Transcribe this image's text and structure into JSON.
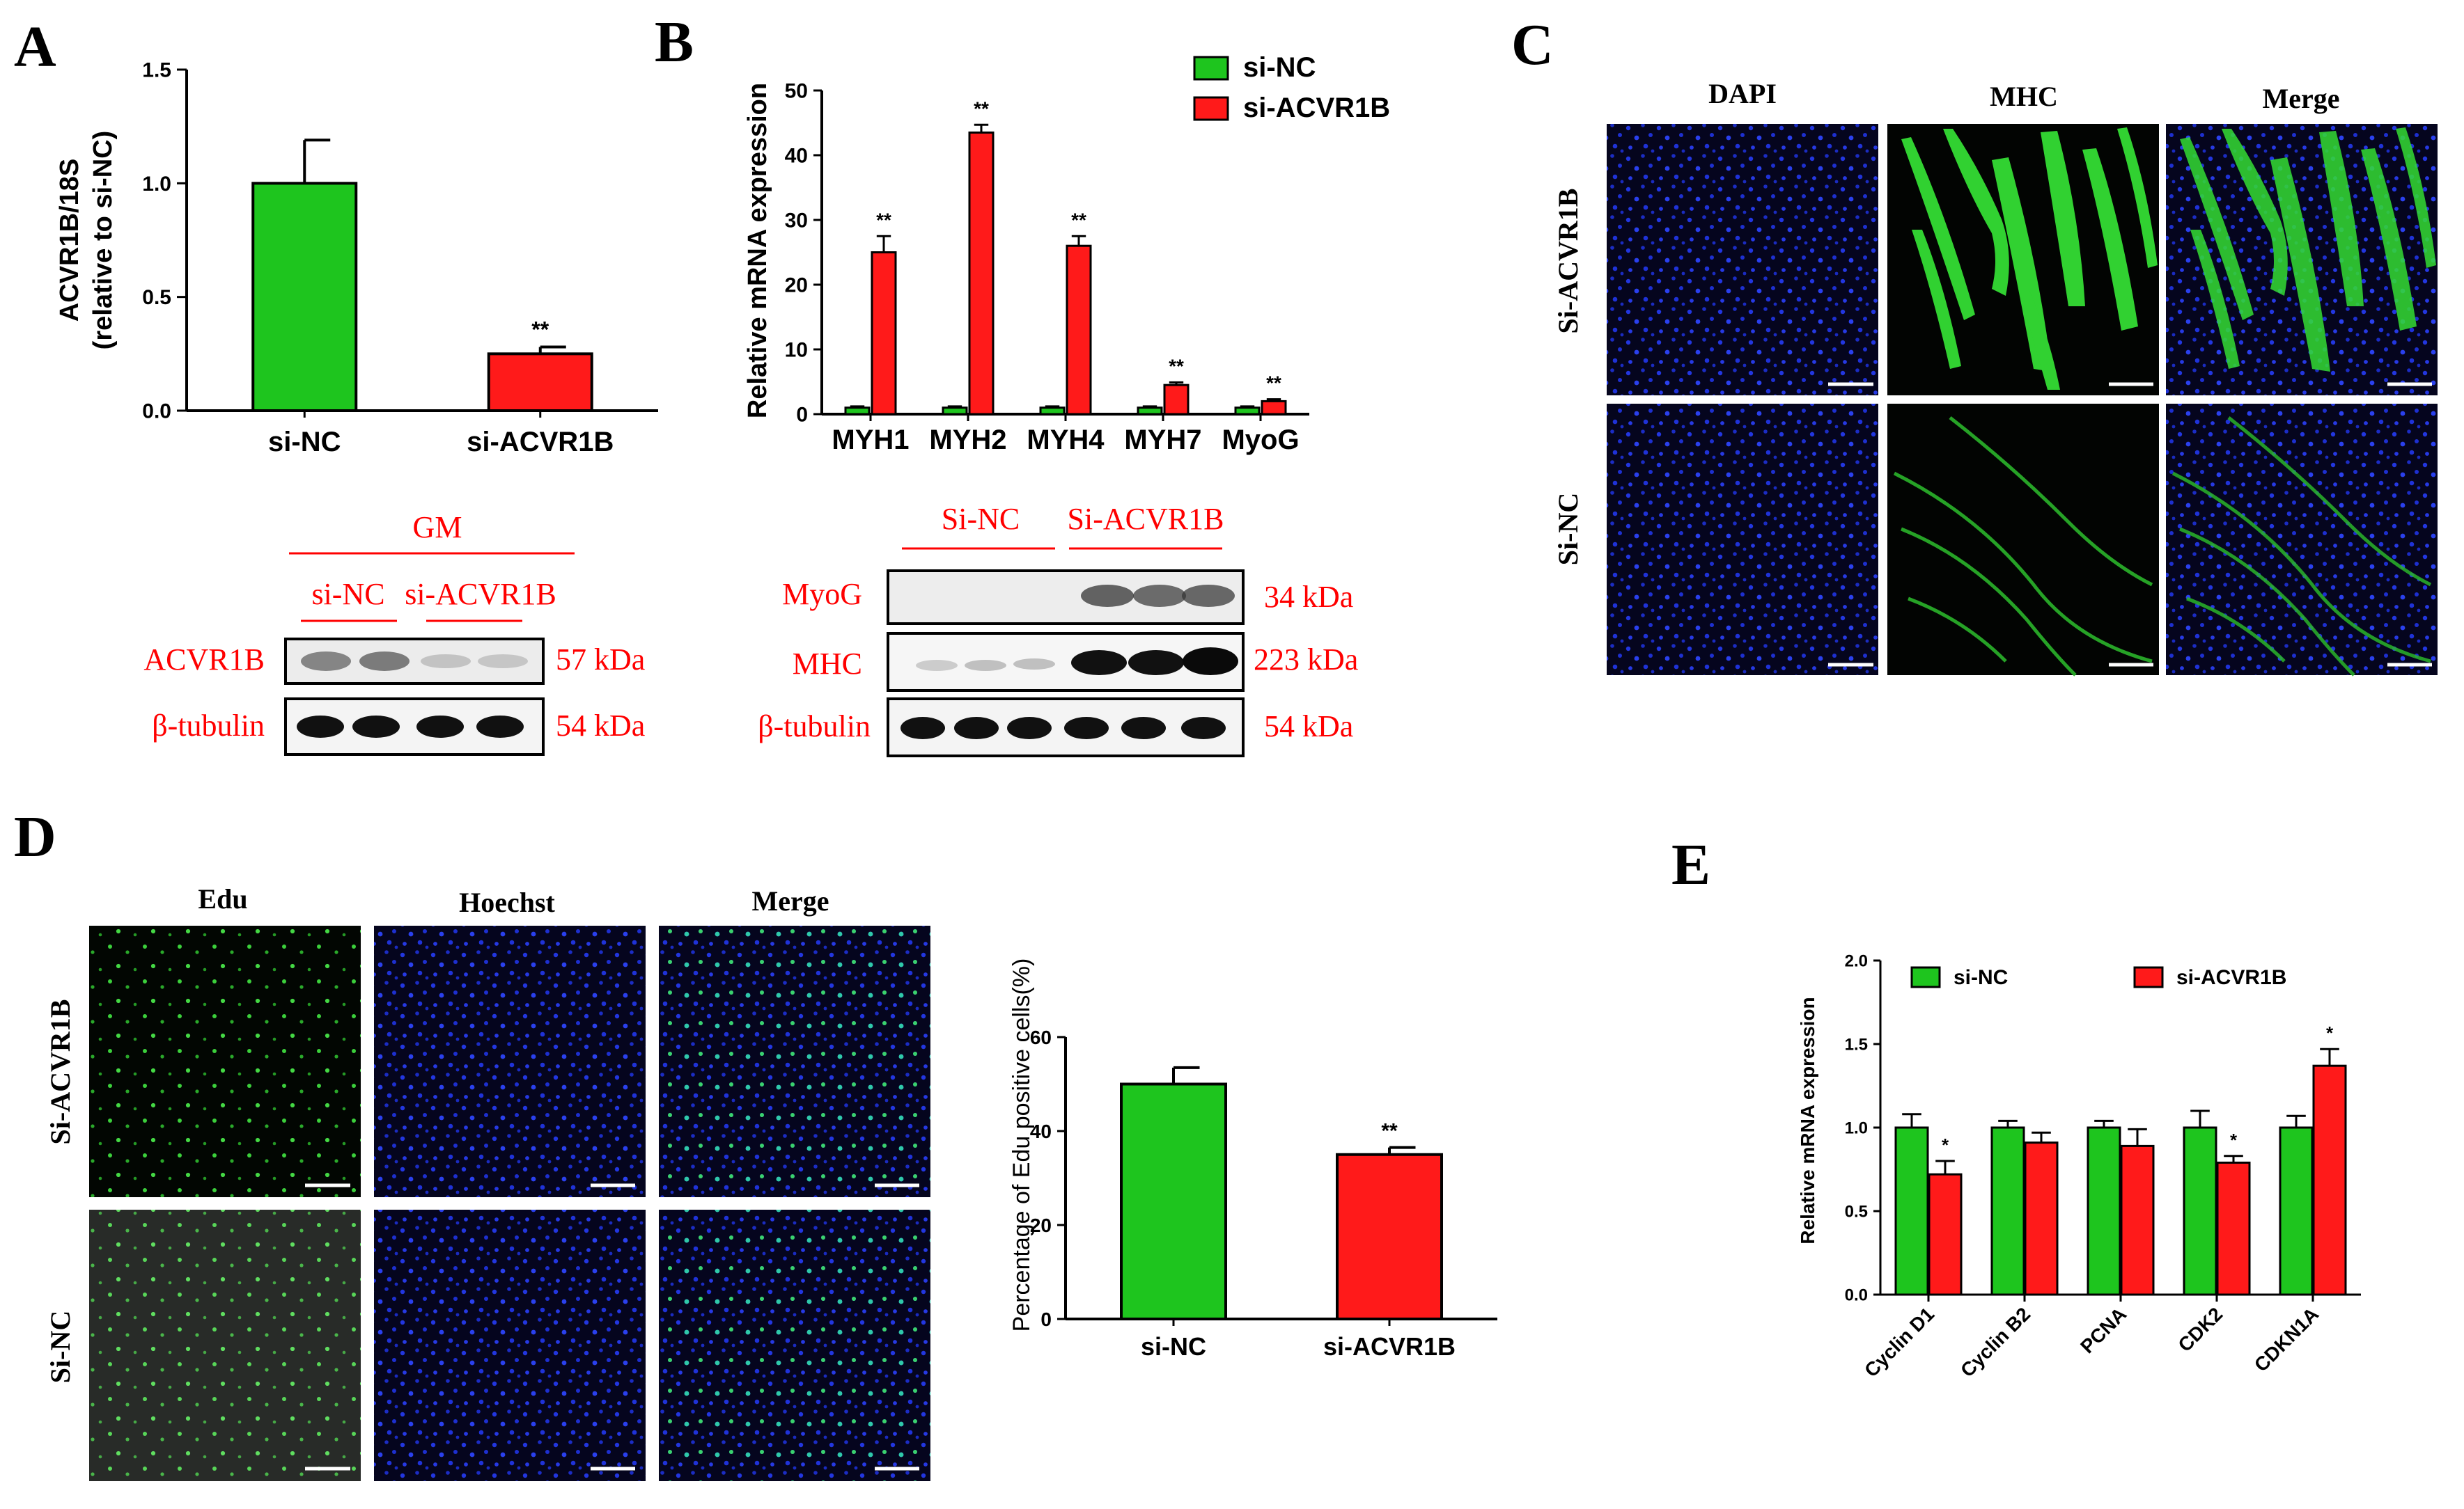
{
  "panel_letters": [
    "A",
    "B",
    "C",
    "D",
    "E"
  ],
  "colors": {
    "si_nc": "#1ec51e",
    "si_acvr1b": "#ff1a1a",
    "blot_label": "#ff0000",
    "nucleus": "#1a2fd6",
    "fiber": "#2ee02e"
  },
  "chart_data": [
    {
      "panel": "A",
      "type": "bar",
      "categories": [
        "si-NC",
        "si-ACVR1B"
      ],
      "values": [
        1.0,
        0.25
      ],
      "errors": [
        0.19,
        0.03
      ],
      "significance": [
        "",
        "**"
      ],
      "ylabel": "ACVR1B/18S (relative to si-NC)",
      "ylabel_lines": [
        "ACVR1B/18S",
        "(relative to si-NC)"
      ],
      "ylim": [
        0,
        1.5
      ],
      "yticks": [
        "0.0",
        "0.5",
        "1.0",
        "1.5"
      ],
      "grid": false
    },
    {
      "panel": "B",
      "type": "bar",
      "categories": [
        "MYH1",
        "MYH2",
        "MYH4",
        "MYH7",
        "MyoG"
      ],
      "series": [
        {
          "name": "si-NC",
          "values": [
            1.0,
            1.0,
            1.0,
            1.0,
            1.0
          ],
          "errors": [
            0.2,
            0.2,
            0.2,
            0.2,
            0.2
          ]
        },
        {
          "name": "si-ACVR1B",
          "values": [
            25.0,
            43.5,
            26.0,
            4.5,
            2.0
          ],
          "errors": [
            2.5,
            1.2,
            1.5,
            0.4,
            0.3
          ]
        }
      ],
      "significance": [
        "**",
        "**",
        "**",
        "**",
        "**"
      ],
      "ylabel": "Relative mRNA expression",
      "ylim": [
        0,
        50
      ],
      "yticks": [
        "0",
        "10",
        "20",
        "30",
        "40",
        "50"
      ],
      "legend_position": "top-right",
      "grid": false
    },
    {
      "panel": "D",
      "type": "bar",
      "categories": [
        "si-NC",
        "si-ACVR1B"
      ],
      "values": [
        50.0,
        35.0
      ],
      "errors": [
        3.5,
        1.5
      ],
      "significance": [
        "",
        "**"
      ],
      "ylabel": "Percentage of Edu positive cells(%)",
      "ylim": [
        0,
        60
      ],
      "yticks": [
        "0",
        "20",
        "40",
        "60"
      ],
      "grid": false
    },
    {
      "panel": "E",
      "type": "bar",
      "categories": [
        "Cyclin D1",
        "Cyclin B2",
        "PCNA",
        "CDK2",
        "CDKN1A"
      ],
      "series": [
        {
          "name": "si-NC",
          "values": [
            1.0,
            1.0,
            1.0,
            1.0,
            1.0
          ],
          "errors": [
            0.08,
            0.04,
            0.04,
            0.1,
            0.07
          ]
        },
        {
          "name": "si-ACVR1B",
          "values": [
            0.72,
            0.91,
            0.89,
            0.79,
            1.37
          ],
          "errors": [
            0.08,
            0.06,
            0.1,
            0.04,
            0.1
          ]
        }
      ],
      "significance": [
        "*",
        "",
        "",
        "*",
        "*"
      ],
      "ylabel": "Relative mRNA expression",
      "ylim": [
        0,
        2.0
      ],
      "yticks": [
        "0.0",
        "0.5",
        "1.0",
        "1.5",
        "2.0"
      ],
      "legend_position": "top",
      "grid": false
    }
  ],
  "blots": {
    "left": {
      "header": "GM",
      "groups": [
        "si-NC",
        "si-ACVR1B"
      ],
      "rows": [
        {
          "label": "ACVR1B",
          "size": "57 kDa"
        },
        {
          "label": "β-tubulin",
          "size": "54 kDa"
        }
      ]
    },
    "right": {
      "groups": [
        "Si-NC",
        "Si-ACVR1B"
      ],
      "rows": [
        {
          "label": "MyoG",
          "size": "34 kDa"
        },
        {
          "label": "MHC",
          "size": "223 kDa"
        },
        {
          "label": "β-tubulin",
          "size": "54 kDa"
        }
      ]
    }
  },
  "micrographs": {
    "C": {
      "columns": [
        "DAPI",
        "MHC",
        "Merge"
      ],
      "rows": [
        "Si-ACVR1B",
        "Si-NC"
      ]
    },
    "D": {
      "columns": [
        "Edu",
        "Hoechst",
        "Merge"
      ],
      "rows": [
        "Si-ACVR1B",
        "Si-NC"
      ]
    }
  }
}
